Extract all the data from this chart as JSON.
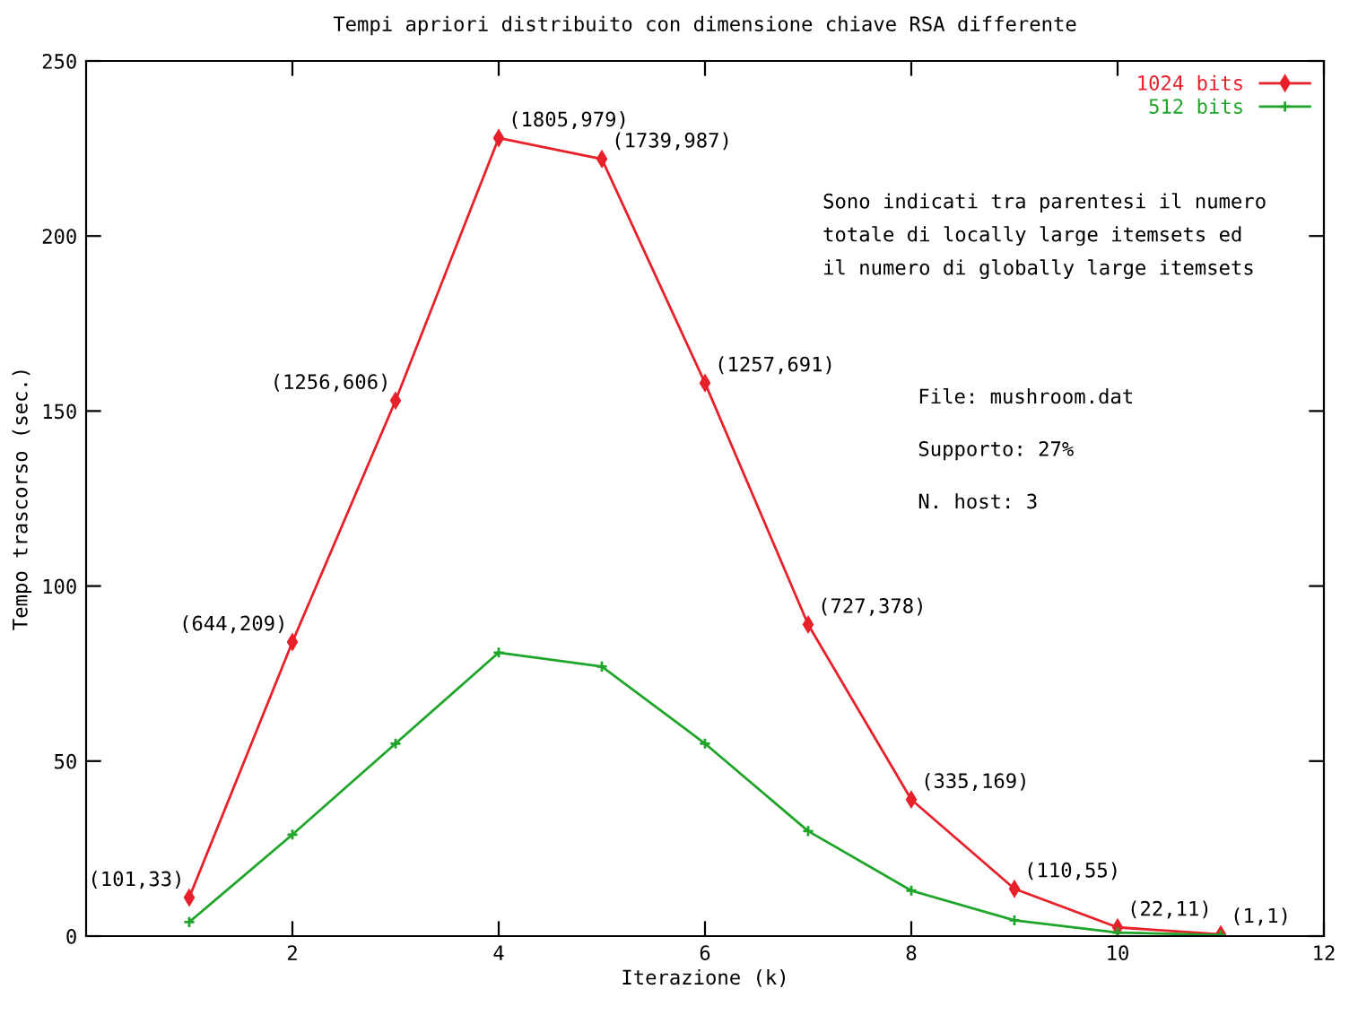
{
  "chart_data": {
    "type": "line",
    "title": "Tempi apriori distribuito con dimensione chiave RSA differente",
    "xlabel": "Iterazione (k)",
    "ylabel": "Tempo trascorso (sec.)",
    "x": [
      1,
      2,
      3,
      4,
      5,
      6,
      7,
      8,
      9,
      10,
      11
    ],
    "series": [
      {
        "name": "1024 bits",
        "color": "#e8202a",
        "marker": "diamond",
        "values": [
          11,
          84,
          153,
          228,
          222,
          158,
          89,
          39,
          13.5,
          2.5,
          0.5
        ]
      },
      {
        "name": "512 bits",
        "color": "#1fa52a",
        "marker": "cross",
        "values": [
          4,
          29,
          55,
          81,
          77,
          55,
          30,
          13,
          4.5,
          1,
          0.3
        ]
      }
    ],
    "xlim": [
      0,
      12
    ],
    "xticks": [
      2,
      4,
      6,
      8,
      10,
      12
    ],
    "ylim": [
      0,
      250
    ],
    "yticks": [
      0,
      50,
      100,
      150,
      200,
      250
    ],
    "grid": false,
    "legend": "top right",
    "line_style": "solid",
    "annotations": [
      {
        "text": "(101,33)",
        "x": 1,
        "y": 11
      },
      {
        "text": "(644,209)",
        "x": 2,
        "y": 84
      },
      {
        "text": "(1256,606)",
        "x": 3,
        "y": 153
      },
      {
        "text": "(1805,979)",
        "x": 4,
        "y": 228
      },
      {
        "text": "(1739,987)",
        "x": 5,
        "y": 222
      },
      {
        "text": "(1257,691)",
        "x": 6,
        "y": 158
      },
      {
        "text": "(727,378)",
        "x": 7,
        "y": 89
      },
      {
        "text": "(335,169)",
        "x": 8,
        "y": 39
      },
      {
        "text": "(110,55)",
        "x": 9,
        "y": 13.5
      },
      {
        "text": "(22,11)",
        "x": 10,
        "y": 2.5
      },
      {
        "text": "(1,1)",
        "x": 11,
        "y": 0.5
      },
      "Sono indicati tra parentesi il numero\ntotale di locally large itemsets ed\nil numero di globally large itemsets",
      "File: mushroom.dat",
      "Supporto: 27%",
      "N. host: 3"
    ]
  }
}
